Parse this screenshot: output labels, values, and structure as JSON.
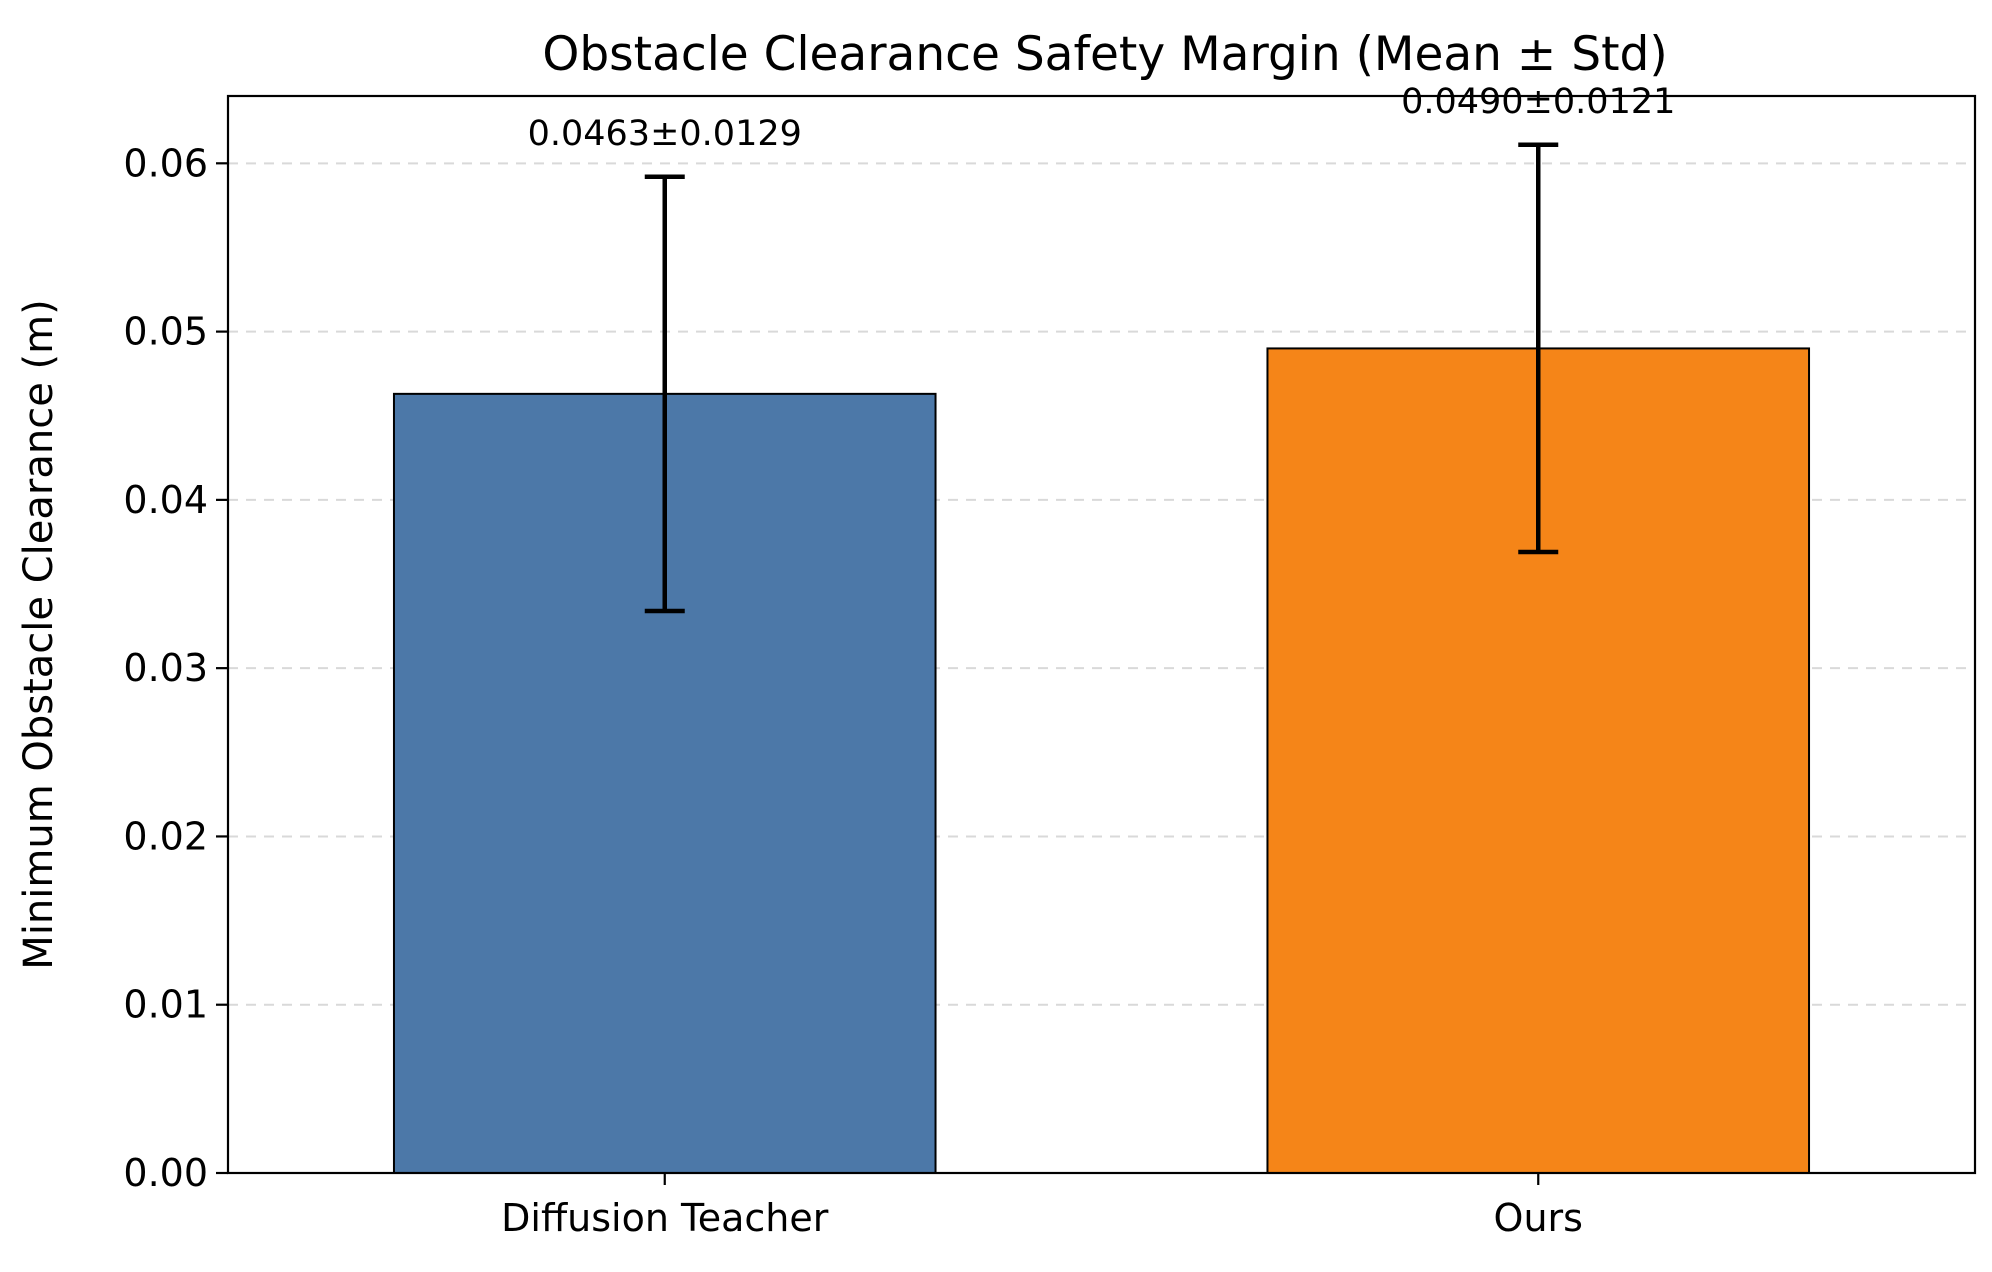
{
  "chart_data": {
    "type": "bar",
    "title": "Obstacle Clearance Safety Margin (Mean ± Std)",
    "xlabel": "",
    "ylabel": "Minimum Obstacle Clearance (m)",
    "categories": [
      "Diffusion Teacher",
      "Ours"
    ],
    "values": [
      0.0463,
      0.049
    ],
    "errors": [
      0.0129,
      0.0121
    ],
    "bar_labels": [
      "0.0463±0.0129",
      "0.0490±0.0121"
    ],
    "colors": [
      "#4c78a8",
      "#f58518"
    ],
    "ylim": [
      0,
      0.064
    ],
    "yticks": [
      0.0,
      0.01,
      0.02,
      0.03,
      0.04,
      0.05,
      0.06
    ],
    "ytick_labels": [
      "0.00",
      "0.01",
      "0.02",
      "0.03",
      "0.04",
      "0.05",
      "0.06"
    ],
    "grid": "y-dashed",
    "legend": "none"
  }
}
